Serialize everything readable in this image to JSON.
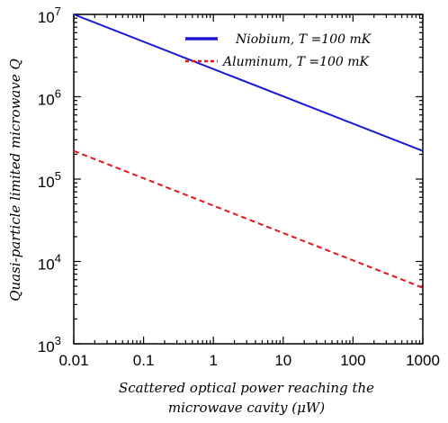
{
  "chart_data": {
    "type": "line",
    "title": "",
    "xlabel_line1": "Scattered optical power reaching  the",
    "xlabel_line2": "microwave cavity (μW)",
    "ylabel": "Quasi-particle limited microwave Q",
    "xscale": "log",
    "yscale": "log",
    "xlim": [
      0.01,
      1000
    ],
    "ylim": [
      1000,
      10000000
    ],
    "x_ticks": [
      "0.01",
      "0.1",
      "1",
      "10",
      "100",
      "1000"
    ],
    "y_tick_exponents": [
      "3",
      "4",
      "5",
      "6",
      "7"
    ],
    "y_tick_base": "10",
    "legend_position": "top-right",
    "grid": false,
    "series": [
      {
        "name": "Niobium, T =100 mK",
        "color": "#1a1ad6",
        "style": "solid",
        "x": [
          0.01,
          1000
        ],
        "y": [
          10000000,
          220000
        ]
      },
      {
        "name": "Aluminum, T =100 mK",
        "color": "#e8141c",
        "style": "dashed",
        "x": [
          0.01,
          1000
        ],
        "y": [
          220000,
          4800
        ]
      }
    ]
  }
}
